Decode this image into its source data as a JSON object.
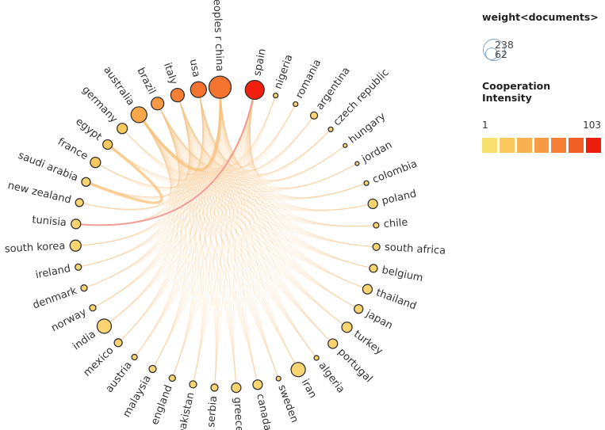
{
  "legend": {
    "weight_title": "weight<documents>",
    "weight_max": "238",
    "weight_min": "62",
    "intensity_title": "Cooperation Intensity",
    "intensity_min": "1",
    "intensity_max": "103",
    "swatch_colors": [
      "#f7e06e",
      "#f9c95d",
      "#f9b14f",
      "#f79a46",
      "#f67f36",
      "#f25e24",
      "#ec1c0f"
    ]
  },
  "chart_data": {
    "type": "chord",
    "nodes": [
      {
        "name": "spain",
        "color": "#f21e0e"
      },
      {
        "name": "nigeria",
        "color": "#f9d470"
      },
      {
        "name": "romania",
        "color": "#f9d470"
      },
      {
        "name": "argentina",
        "color": "#f9d470"
      },
      {
        "name": "czech republic",
        "color": "#f9d470"
      },
      {
        "name": "hungary",
        "color": "#f9d470"
      },
      {
        "name": "jordan",
        "color": "#f9d470"
      },
      {
        "name": "colombia",
        "color": "#f9d470"
      },
      {
        "name": "poland",
        "color": "#f9d470"
      },
      {
        "name": "chile",
        "color": "#f9d470"
      },
      {
        "name": "south africa",
        "color": "#f9d470"
      },
      {
        "name": "belgium",
        "color": "#f9d470"
      },
      {
        "name": "thailand",
        "color": "#f9d470"
      },
      {
        "name": "japan",
        "color": "#f9d470"
      },
      {
        "name": "turkey",
        "color": "#f9d470"
      },
      {
        "name": "portugal",
        "color": "#f9d470"
      },
      {
        "name": "algeria",
        "color": "#f9d470"
      },
      {
        "name": "iran",
        "color": "#f9d470"
      },
      {
        "name": "sweden",
        "color": "#f9d470"
      },
      {
        "name": "canada",
        "color": "#f9d470"
      },
      {
        "name": "greece",
        "color": "#f9d470"
      },
      {
        "name": "serbia",
        "color": "#f9d470"
      },
      {
        "name": "pakistan",
        "color": "#f9d470"
      },
      {
        "name": "england",
        "color": "#f9d470"
      },
      {
        "name": "malaysia",
        "color": "#f9d470"
      },
      {
        "name": "austria",
        "color": "#f9d470"
      },
      {
        "name": "mexico",
        "color": "#f9d470"
      },
      {
        "name": "india",
        "color": "#f9d470"
      },
      {
        "name": "norway",
        "color": "#f9d470"
      },
      {
        "name": "denmark",
        "color": "#f9d470"
      },
      {
        "name": "ireland",
        "color": "#f9d470"
      },
      {
        "name": "south korea",
        "color": "#f9d470"
      },
      {
        "name": "tunisia",
        "color": "#f9d470"
      },
      {
        "name": "new zealand",
        "color": "#f9d470"
      },
      {
        "name": "saudi arabia",
        "color": "#f9d470"
      },
      {
        "name": "france",
        "color": "#f9c95d"
      },
      {
        "name": "egypt",
        "color": "#f9c95d"
      },
      {
        "name": "germany",
        "color": "#f9c95d"
      },
      {
        "name": "australia",
        "color": "#f9a64a"
      },
      {
        "name": "brazil",
        "color": "#f79a46"
      },
      {
        "name": "italy",
        "color": "#f67f36"
      },
      {
        "name": "usa",
        "color": "#f4732f"
      },
      {
        "name": "peoples r china",
        "color": "#f4732f"
      }
    ],
    "links": [
      {
        "source": "spain",
        "target": "tunisia",
        "intensity": "high"
      },
      {
        "source": "australia",
        "target": "peoples r china",
        "intensity": "medium"
      },
      {
        "source": "saudi arabia",
        "target": "egypt",
        "intensity": "medium"
      }
    ]
  }
}
